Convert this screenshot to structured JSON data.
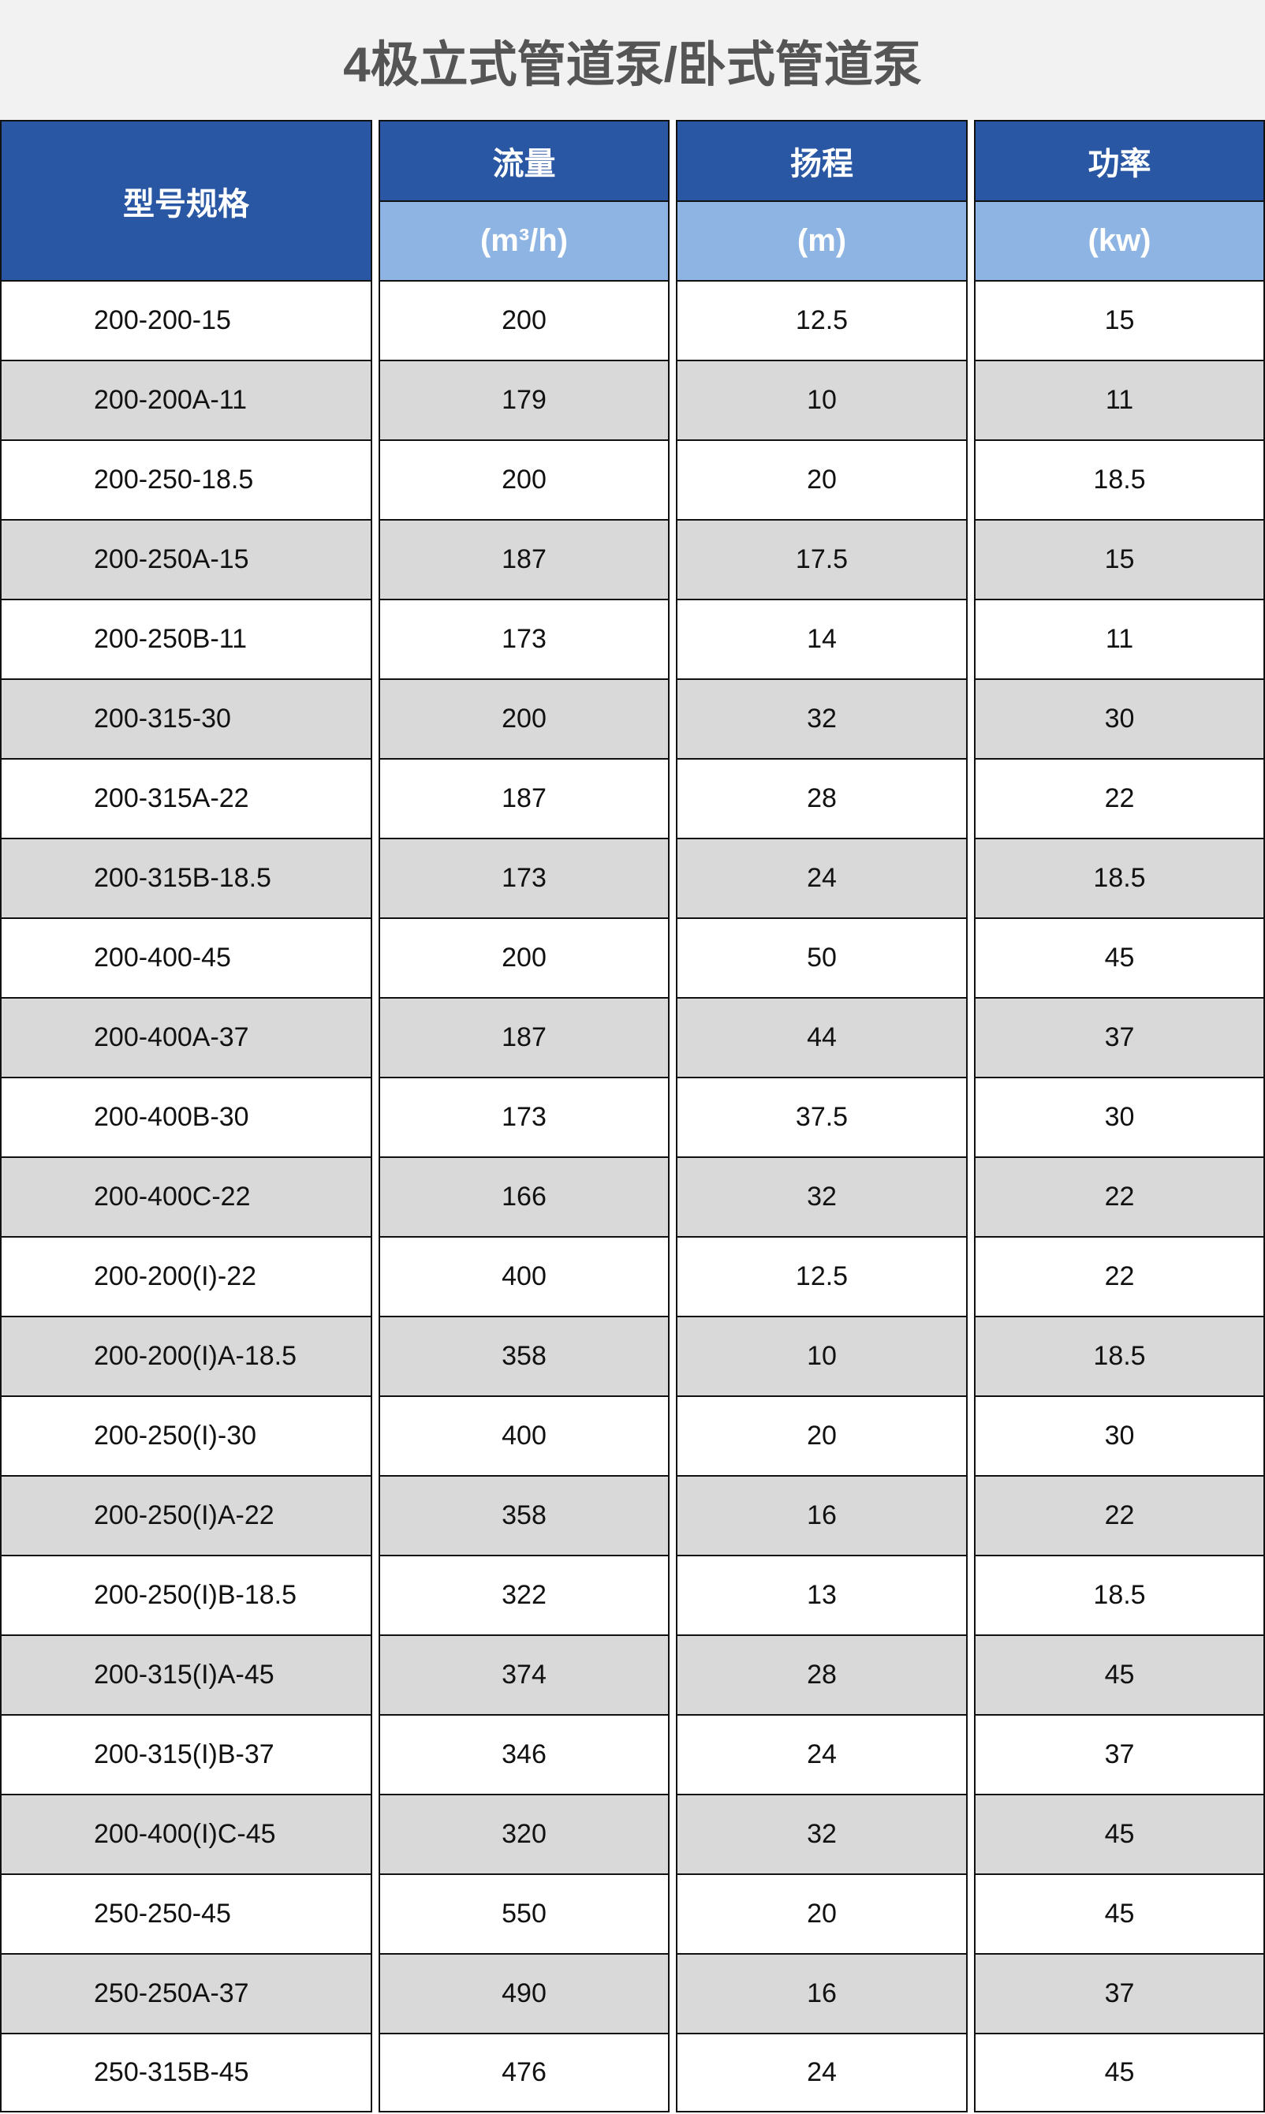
{
  "title": "4极立式管道泵/卧式管道泵",
  "colors": {
    "header_dark": "#2a57a3",
    "header_light": "#8eb4e3",
    "row_alt": "#d9d9d9",
    "title_bg": "#f2f2f2"
  },
  "headers": {
    "model": "型号规格",
    "flow": "流量",
    "flow_unit": "(m³/h)",
    "head": "扬程",
    "head_unit": "(m)",
    "power": "功率",
    "power_unit": "(kw)"
  },
  "rows": [
    [
      "200-200-15",
      "200",
      "12.5",
      "15"
    ],
    [
      "200-200A-11",
      "179",
      "10",
      "11"
    ],
    [
      "200-250-18.5",
      "200",
      "20",
      "18.5"
    ],
    [
      "200-250A-15",
      "187",
      "17.5",
      "15"
    ],
    [
      "200-250B-11",
      "173",
      "14",
      "11"
    ],
    [
      "200-315-30",
      "200",
      "32",
      "30"
    ],
    [
      "200-315A-22",
      "187",
      "28",
      "22"
    ],
    [
      "200-315B-18.5",
      "173",
      "24",
      "18.5"
    ],
    [
      "200-400-45",
      "200",
      "50",
      "45"
    ],
    [
      "200-400A-37",
      "187",
      "44",
      "37"
    ],
    [
      "200-400B-30",
      "173",
      "37.5",
      "30"
    ],
    [
      "200-400C-22",
      "166",
      "32",
      "22"
    ],
    [
      "200-200(I)-22",
      "400",
      "12.5",
      "22"
    ],
    [
      "200-200(I)A-18.5",
      "358",
      "10",
      "18.5"
    ],
    [
      "200-250(I)-30",
      "400",
      "20",
      "30"
    ],
    [
      "200-250(I)A-22",
      "358",
      "16",
      "22"
    ],
    [
      "200-250(I)B-18.5",
      "322",
      "13",
      "18.5"
    ],
    [
      "200-315(I)A-45",
      "374",
      "28",
      "45"
    ],
    [
      "200-315(I)B-37",
      "346",
      "24",
      "37"
    ],
    [
      "200-400(I)C-45",
      "320",
      "32",
      "45"
    ],
    [
      "250-250-45",
      "550",
      "20",
      "45"
    ],
    [
      "250-250A-37",
      "490",
      "16",
      "37"
    ],
    [
      "250-315B-45",
      "476",
      "24",
      "45"
    ]
  ]
}
